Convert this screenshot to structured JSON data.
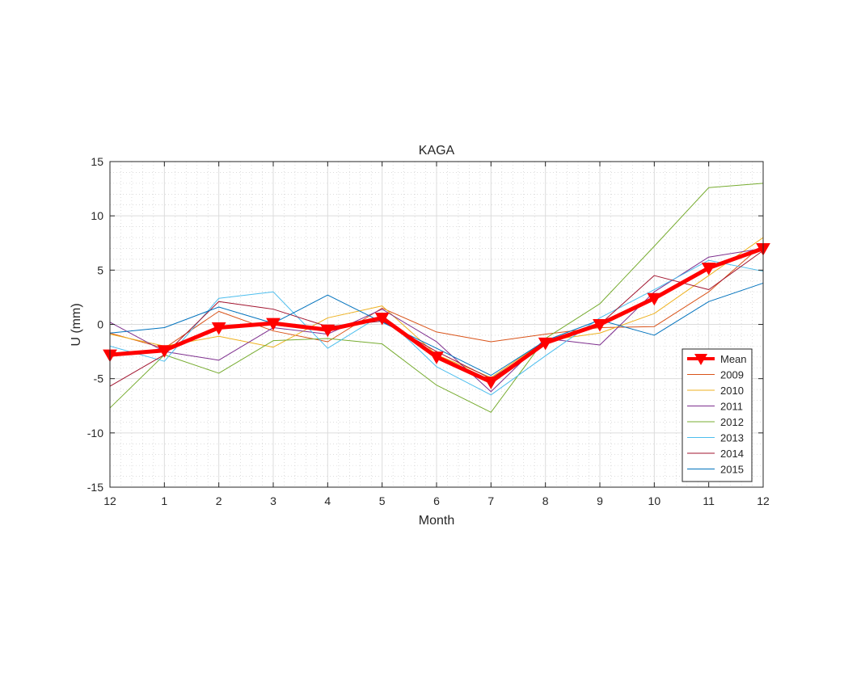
{
  "chart_data": {
    "type": "line",
    "title": "KAGA",
    "xlabel": "Month",
    "ylabel": "U (mm)",
    "x_tick_labels": [
      "12",
      "1",
      "2",
      "3",
      "4",
      "5",
      "6",
      "7",
      "8",
      "9",
      "10",
      "11",
      "12"
    ],
    "y_ticks": [
      -15,
      -10,
      -5,
      0,
      5,
      10,
      15
    ],
    "xlim": [
      0,
      12
    ],
    "ylim": [
      -15,
      15
    ],
    "grid": true,
    "minor_grid": true,
    "legend_position": "bottom-right",
    "series": [
      {
        "name": "Mean",
        "color": "#ff0000",
        "marker": "down-triangle",
        "values": [
          -2.8,
          -2.4,
          -0.3,
          0.1,
          -0.5,
          0.6,
          -3.0,
          -5.3,
          -1.7,
          0.0,
          2.4,
          5.2,
          7.0
        ]
      },
      {
        "name": "2009",
        "color": "#d95319",
        "values": [
          -0.8,
          -2.2,
          1.2,
          -0.6,
          -1.6,
          1.5,
          -0.7,
          -1.6,
          -0.9,
          -0.3,
          -0.2,
          3.0,
          7.4
        ]
      },
      {
        "name": "2010",
        "color": "#edb120",
        "values": [
          -0.9,
          -2.0,
          -1.1,
          -2.1,
          0.6,
          1.7,
          -2.8,
          -4.9,
          -1.5,
          -0.8,
          1.0,
          4.5,
          8.0
        ]
      },
      {
        "name": "2011",
        "color": "#7e2f8e",
        "values": [
          0.2,
          -2.5,
          -3.3,
          -0.3,
          -0.9,
          1.4,
          -1.6,
          -6.2,
          -1.3,
          -1.9,
          3.0,
          6.2,
          7.0
        ]
      },
      {
        "name": "2012",
        "color": "#77ac30",
        "values": [
          -7.7,
          -2.8,
          -4.5,
          -1.5,
          -1.3,
          -1.8,
          -5.6,
          -8.1,
          -1.3,
          1.9,
          7.2,
          12.6,
          13.0
        ]
      },
      {
        "name": "2013",
        "color": "#4dbeee",
        "values": [
          -2.0,
          -3.4,
          2.4,
          3.0,
          -2.2,
          0.9,
          -3.9,
          -6.5,
          -2.9,
          0.6,
          3.2,
          5.9,
          4.9
        ]
      },
      {
        "name": "2014",
        "color": "#a2142f",
        "values": [
          -5.7,
          -2.8,
          2.1,
          1.4,
          -0.2,
          0.3,
          -2.5,
          -5.0,
          -1.7,
          0.0,
          4.5,
          3.2,
          6.8
        ]
      },
      {
        "name": "2015",
        "color": "#0072bd",
        "values": [
          -0.8,
          -0.3,
          1.6,
          0.1,
          2.7,
          0.2,
          -2.2,
          -4.7,
          -1.5,
          0.4,
          -1.0,
          2.1,
          3.8
        ]
      }
    ]
  }
}
